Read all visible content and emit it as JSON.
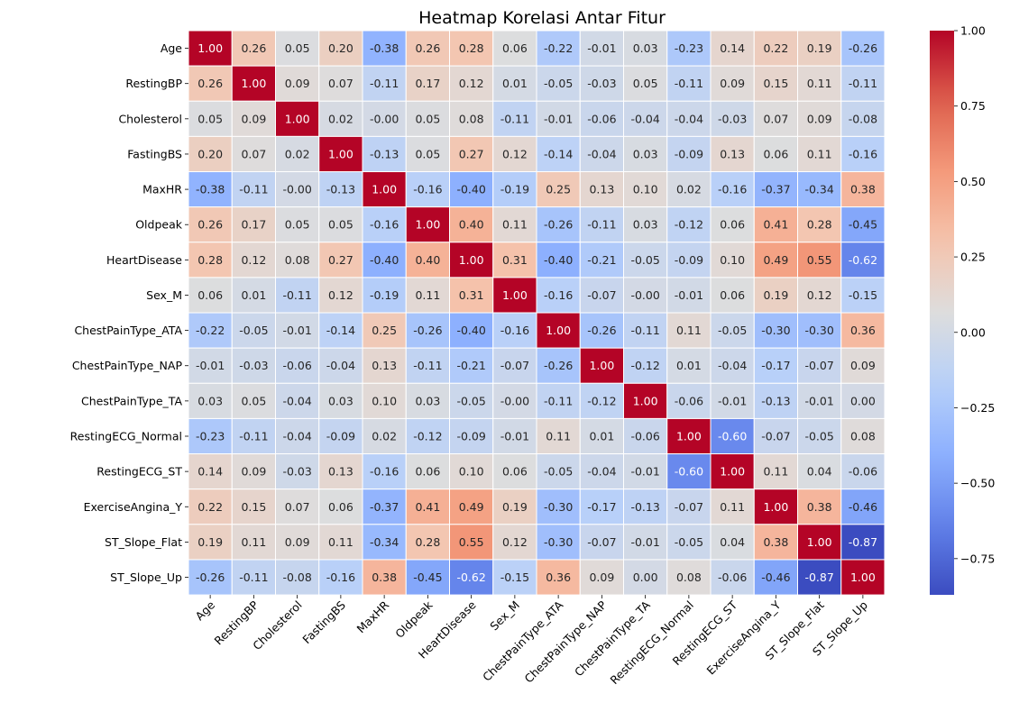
{
  "chart_data": {
    "type": "heatmap",
    "title": "Heatmap Korelasi Antar Fitur",
    "labels": [
      "Age",
      "RestingBP",
      "Cholesterol",
      "FastingBS",
      "MaxHR",
      "Oldpeak",
      "HeartDisease",
      "Sex_M",
      "ChestPainType_ATA",
      "ChestPainType_NAP",
      "ChestPainType_TA",
      "RestingECG_Normal",
      "RestingECG_ST",
      "ExerciseAngina_Y",
      "ST_Slope_Flat",
      "ST_Slope_Up"
    ],
    "values": [
      [
        1.0,
        0.26,
        0.05,
        0.2,
        -0.38,
        0.26,
        0.28,
        0.06,
        -0.22,
        -0.01,
        0.03,
        -0.23,
        0.14,
        0.22,
        0.19,
        -0.26
      ],
      [
        0.26,
        1.0,
        0.09,
        0.07,
        -0.11,
        0.17,
        0.12,
        0.01,
        -0.05,
        -0.03,
        0.05,
        -0.11,
        0.09,
        0.15,
        0.11,
        -0.11
      ],
      [
        0.05,
        0.09,
        1.0,
        0.02,
        -0.0,
        0.05,
        0.08,
        -0.11,
        -0.01,
        -0.06,
        -0.04,
        -0.04,
        -0.03,
        0.07,
        0.09,
        -0.08
      ],
      [
        0.2,
        0.07,
        0.02,
        1.0,
        -0.13,
        0.05,
        0.27,
        0.12,
        -0.14,
        -0.04,
        0.03,
        -0.09,
        0.13,
        0.06,
        0.11,
        -0.16
      ],
      [
        -0.38,
        -0.11,
        -0.0,
        -0.13,
        1.0,
        -0.16,
        -0.4,
        -0.19,
        0.25,
        0.13,
        0.1,
        0.02,
        -0.16,
        -0.37,
        -0.34,
        0.38
      ],
      [
        0.26,
        0.17,
        0.05,
        0.05,
        -0.16,
        1.0,
        0.4,
        0.11,
        -0.26,
        -0.11,
        0.03,
        -0.12,
        0.06,
        0.41,
        0.28,
        -0.45
      ],
      [
        0.28,
        0.12,
        0.08,
        0.27,
        -0.4,
        0.4,
        1.0,
        0.31,
        -0.4,
        -0.21,
        -0.05,
        -0.09,
        0.1,
        0.49,
        0.55,
        -0.62
      ],
      [
        0.06,
        0.01,
        -0.11,
        0.12,
        -0.19,
        0.11,
        0.31,
        1.0,
        -0.16,
        -0.07,
        -0.0,
        -0.01,
        0.06,
        0.19,
        0.12,
        -0.15
      ],
      [
        -0.22,
        -0.05,
        -0.01,
        -0.14,
        0.25,
        -0.26,
        -0.4,
        -0.16,
        1.0,
        -0.26,
        -0.11,
        0.11,
        -0.05,
        -0.3,
        -0.3,
        0.36
      ],
      [
        -0.01,
        -0.03,
        -0.06,
        -0.04,
        0.13,
        -0.11,
        -0.21,
        -0.07,
        -0.26,
        1.0,
        -0.12,
        0.01,
        -0.04,
        -0.17,
        -0.07,
        0.09
      ],
      [
        0.03,
        0.05,
        -0.04,
        0.03,
        0.1,
        0.03,
        -0.05,
        -0.0,
        -0.11,
        -0.12,
        1.0,
        -0.06,
        -0.01,
        -0.13,
        -0.01,
        0.0
      ],
      [
        -0.23,
        -0.11,
        -0.04,
        -0.09,
        0.02,
        -0.12,
        -0.09,
        -0.01,
        0.11,
        0.01,
        -0.06,
        1.0,
        -0.6,
        -0.07,
        -0.05,
        0.08
      ],
      [
        0.14,
        0.09,
        -0.03,
        0.13,
        -0.16,
        0.06,
        0.1,
        0.06,
        -0.05,
        -0.04,
        -0.01,
        -0.6,
        1.0,
        0.11,
        0.04,
        -0.06
      ],
      [
        0.22,
        0.15,
        0.07,
        0.06,
        -0.37,
        0.41,
        0.49,
        0.19,
        -0.3,
        -0.17,
        -0.13,
        -0.07,
        0.11,
        1.0,
        0.38,
        -0.46
      ],
      [
        0.19,
        0.11,
        0.09,
        0.11,
        -0.34,
        0.28,
        0.55,
        0.12,
        -0.3,
        -0.07,
        -0.01,
        -0.05,
        0.04,
        0.38,
        1.0,
        -0.87
      ],
      [
        -0.26,
        -0.11,
        -0.08,
        -0.16,
        0.38,
        -0.45,
        -0.62,
        -0.15,
        0.36,
        0.09,
        0.0,
        0.08,
        -0.06,
        -0.46,
        -0.87,
        1.0
      ]
    ],
    "colormap": "coolwarm",
    "vmin": -0.87,
    "vmax": 1.0,
    "colorbar_ticks": [
      1.0,
      0.75,
      0.5,
      0.25,
      0.0,
      -0.25,
      -0.5,
      -0.75
    ],
    "colorbar_tick_labels": [
      "1.00",
      "0.75",
      "0.50",
      "0.25",
      "0.00",
      "−0.25",
      "−0.50",
      "−0.75"
    ],
    "annotations": "2 decimal values in each cell",
    "grid": "white cell borders"
  }
}
